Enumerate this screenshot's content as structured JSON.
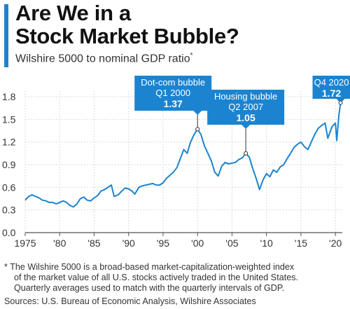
{
  "header": {
    "title_line1": "Are We in a",
    "title_line2": "Stock Market Bubble?",
    "subtitle": "Wilshire 5000 to nominal GDP ratio",
    "subtitle_marker": "*"
  },
  "footer": {
    "note_line1": "* The Wilshire 5000 is a broad-based market-capitalization-weighted index",
    "note_line2": "of the market value of all U.S. stocks actively traded in the United States.",
    "note_line3": "Quarterly averages used to match with the quarterly intervals of GDP.",
    "sources": "Sources: U.S. Bureau of Economic Analysis, Wilshire Associates"
  },
  "colors": {
    "line": "#1b84d0",
    "accent": "#1b84d0",
    "callout": "#1b84d0",
    "grid": "#cfcfcf",
    "axis": "#555555"
  },
  "chart_data": {
    "type": "line",
    "title": "",
    "xlabel": "",
    "ylabel": "",
    "xlim": [
      1975,
      2021
    ],
    "ylim": [
      0,
      1.8
    ],
    "grid": true,
    "y_ticks": [
      0.0,
      0.3,
      0.6,
      0.9,
      1.2,
      1.5,
      1.8
    ],
    "y_tick_labels": [
      "0.0",
      "0.3",
      "0.6",
      "0.9",
      "1.2",
      "1.5",
      "1.8"
    ],
    "x_ticks": [
      1975,
      1980,
      1985,
      1990,
      1995,
      2000,
      2005,
      2010,
      2015,
      2020
    ],
    "x_tick_labels": [
      "1975",
      "'80",
      "'85",
      "'90",
      "'95",
      "'00",
      "'05",
      "'10",
      "'15",
      "'20"
    ],
    "series": [
      {
        "x": [
          1975.0,
          1975.5,
          1976.0,
          1976.5,
          1977.0,
          1977.5,
          1978.0,
          1978.5,
          1979.0,
          1979.5,
          1980.0,
          1980.5,
          1981.0,
          1981.5,
          1982.0,
          1982.5,
          1983.0,
          1983.5,
          1984.0,
          1984.5,
          1985.0,
          1985.5,
          1986.0,
          1986.5,
          1987.0,
          1987.5,
          1987.9,
          1988.5,
          1989.0,
          1989.5,
          1990.0,
          1990.5,
          1990.9,
          1991.5,
          1992.0,
          1992.5,
          1993.0,
          1993.5,
          1994.0,
          1994.5,
          1995.0,
          1995.5,
          1996.0,
          1996.5,
          1997.0,
          1997.5,
          1998.0,
          1998.5,
          1999.0,
          1999.5,
          2000.0,
          2000.5,
          2001.0,
          2001.5,
          2002.0,
          2002.5,
          2003.0,
          2003.5,
          2004.0,
          2004.5,
          2005.0,
          2005.5,
          2006.0,
          2006.5,
          2007.0,
          2007.5,
          2008.0,
          2008.5,
          2009.0,
          2009.5,
          2010.0,
          2010.5,
          2011.0,
          2011.5,
          2012.0,
          2012.5,
          2013.0,
          2013.5,
          2014.0,
          2014.5,
          2015.0,
          2015.5,
          2016.0,
          2016.5,
          2017.0,
          2017.5,
          2018.0,
          2018.5,
          2018.9,
          2019.5,
          2020.0,
          2020.2,
          2020.5,
          2020.75
        ],
        "y": [
          0.43,
          0.48,
          0.5,
          0.48,
          0.46,
          0.43,
          0.42,
          0.4,
          0.4,
          0.38,
          0.4,
          0.42,
          0.4,
          0.36,
          0.34,
          0.38,
          0.45,
          0.47,
          0.43,
          0.42,
          0.46,
          0.49,
          0.55,
          0.57,
          0.6,
          0.63,
          0.48,
          0.5,
          0.55,
          0.59,
          0.58,
          0.55,
          0.51,
          0.6,
          0.62,
          0.63,
          0.64,
          0.65,
          0.63,
          0.63,
          0.66,
          0.72,
          0.76,
          0.8,
          0.86,
          0.98,
          1.1,
          1.05,
          1.2,
          1.3,
          1.37,
          1.3,
          1.15,
          1.05,
          0.95,
          0.8,
          0.75,
          0.88,
          0.93,
          0.91,
          0.92,
          0.93,
          0.97,
          0.99,
          1.05,
          1.0,
          0.85,
          0.72,
          0.57,
          0.7,
          0.78,
          0.74,
          0.83,
          0.8,
          0.87,
          0.9,
          0.98,
          1.05,
          1.13,
          1.17,
          1.2,
          1.14,
          1.1,
          1.2,
          1.3,
          1.38,
          1.42,
          1.45,
          1.25,
          1.4,
          1.45,
          1.22,
          1.55,
          1.72
        ]
      }
    ],
    "annotations": [
      {
        "label": "Dot-com bubble",
        "period": "Q1 2000",
        "value": "1.37",
        "x": 2000.0,
        "y": 1.37
      },
      {
        "label": "Housing bubble",
        "period": "Q2 2007",
        "value": "1.05",
        "x": 2007.0,
        "y": 1.05
      },
      {
        "label": "",
        "period": "Q4 2020",
        "value": "1.72",
        "x": 2020.75,
        "y": 1.72
      }
    ]
  }
}
